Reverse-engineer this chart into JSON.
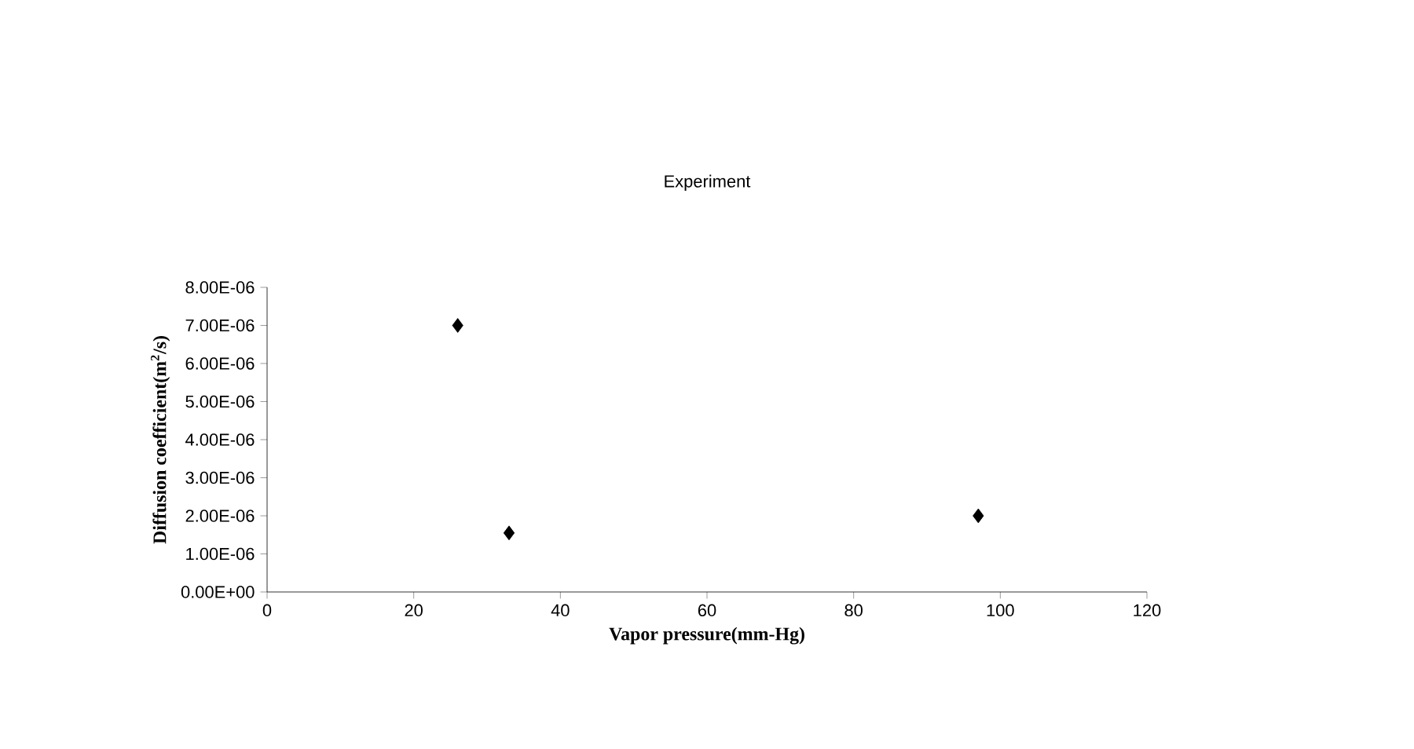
{
  "chart_data": {
    "type": "scatter",
    "title": "Experiment",
    "xlabel": "Vapor pressure(mm-Hg)",
    "ylabel": "Diffusion coefficient(m$^{2}$/s)",
    "series": [
      {
        "color": "#000000",
        "x": [
          26,
          33,
          97
        ],
        "values": [
          7e-06,
          1.55e-06,
          2e-06
        ]
      }
    ],
    "marker": "diamond",
    "xlim": [
      0,
      120
    ],
    "xticks": [
      0,
      20,
      40,
      60,
      80,
      100,
      120
    ],
    "ylim": [
      0,
      8e-06
    ],
    "yticks": [
      {
        "value": 0,
        "label": "0.00E+00"
      },
      {
        "value": 1e-06,
        "label": "1.00E-06"
      },
      {
        "value": 2e-06,
        "label": "2.00E-06"
      },
      {
        "value": 3e-06,
        "label": "3.00E-06"
      },
      {
        "value": 4e-06,
        "label": "4.00E-06"
      },
      {
        "value": 5e-06,
        "label": "5.00E-06"
      },
      {
        "value": 6e-06,
        "label": "6.00E-06"
      },
      {
        "value": 7e-06,
        "label": "7.00E-06"
      },
      {
        "value": 8e-06,
        "label": "8.00E-06"
      }
    ]
  }
}
